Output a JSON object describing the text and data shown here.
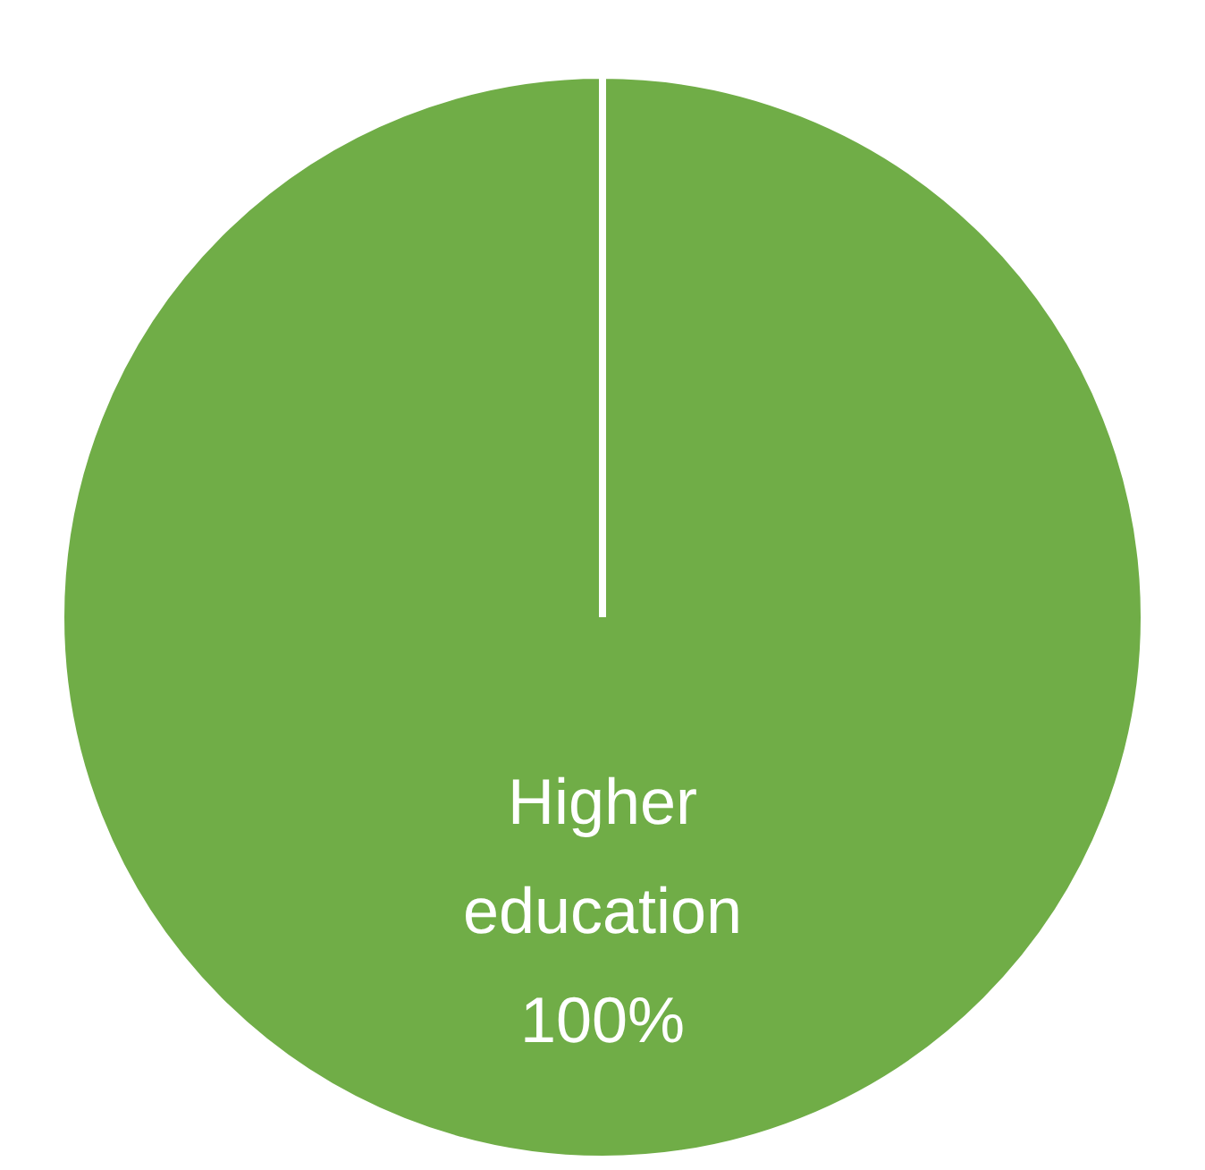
{
  "chart_data": {
    "type": "pie",
    "categories": [
      "Higher education"
    ],
    "values": [
      100
    ],
    "value_labels": [
      "100%"
    ],
    "colors": [
      "#70ad47"
    ],
    "data_labels": true,
    "legend": false
  }
}
